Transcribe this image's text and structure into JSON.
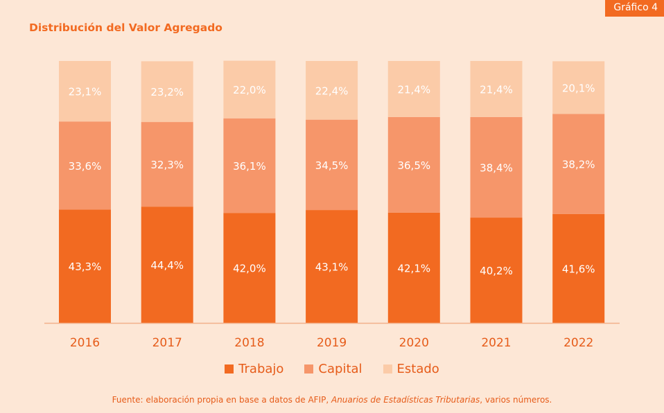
{
  "badge": "Gráfico 4",
  "title": "Distribución del Valor Agregado",
  "colors": {
    "background": "#fde7d6",
    "trabajo": "#f26a21",
    "capital": "#f6966a",
    "estado": "#fbcba8",
    "text": "#e65c1a"
  },
  "chart_data": {
    "type": "bar",
    "stacked": true,
    "title": "Distribución del Valor Agregado",
    "categories": [
      "2016",
      "2017",
      "2018",
      "2019",
      "2020",
      "2021",
      "2022"
    ],
    "series": [
      {
        "name": "Trabajo",
        "values": [
          43.3,
          44.4,
          42.0,
          43.1,
          42.1,
          40.2,
          41.6
        ],
        "labels": [
          "43,3%",
          "44,4%",
          "42,0%",
          "43,1%",
          "42,1%",
          "40,2%",
          "41,6%"
        ]
      },
      {
        "name": "Capital",
        "values": [
          33.6,
          32.3,
          36.1,
          34.5,
          36.5,
          38.4,
          38.2
        ],
        "labels": [
          "33,6%",
          "32,3%",
          "36,1%",
          "34,5%",
          "36,5%",
          "38,4%",
          "38,2%"
        ]
      },
      {
        "name": "Estado",
        "values": [
          23.1,
          23.2,
          22.0,
          22.4,
          21.4,
          21.4,
          20.1
        ],
        "labels": [
          "23,1%",
          "23,2%",
          "22,0%",
          "22,4%",
          "21,4%",
          "21,4%",
          "20,1%"
        ]
      }
    ],
    "ylim": [
      0,
      100
    ],
    "xlabel": "",
    "ylabel": "",
    "legend": "bottom-center"
  },
  "legend": [
    "Trabajo",
    "Capital",
    "Estado"
  ],
  "source": {
    "prefix": "Fuente: elaboración propia en base a datos de AFIP, ",
    "italic": "Anuarios de Estadísticas Tributarias",
    "suffix": ", varios números."
  }
}
